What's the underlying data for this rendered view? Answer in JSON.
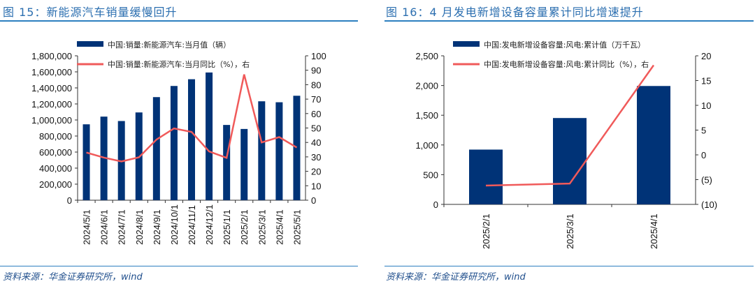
{
  "left": {
    "title": "图 15：新能源汽车销量缓慢回升",
    "source": "资料来源：华金证券研究所，wind"
  },
  "right": {
    "title": "图 16：4 月发电新增设备容量累计同比增速提升",
    "source": "资料来源：华金证券研究所，wind"
  },
  "colors": {
    "bar": "#003377",
    "line": "#f05a5a",
    "accent": "#2c7fc0"
  },
  "chart_data": [
    {
      "type": "bar+line",
      "title": "图 15：新能源汽车销量缓慢回升",
      "categories": [
        "2024/5/1",
        "2024/6/1",
        "2024/7/1",
        "2024/8/1",
        "2024/9/1",
        "2024/10/1",
        "2024/11/1",
        "2024/12/1",
        "2025/1/1",
        "2025/2/1",
        "2025/3/1",
        "2025/4/1",
        "2025/5/1"
      ],
      "series": [
        {
          "name": "中国:销量:新能源汽车:当月值（辆）",
          "axis": "left",
          "type": "bar",
          "values": [
            946000,
            1042000,
            987000,
            1094000,
            1285000,
            1424000,
            1508000,
            1592000,
            938000,
            888000,
            1233000,
            1221000,
            1302000
          ]
        },
        {
          "name": "中国:销量:新能源汽车:当月同比（%），右",
          "axis": "right",
          "type": "line",
          "values": [
            33.0,
            29.5,
            26.8,
            29.7,
            42.0,
            49.7,
            47.3,
            33.8,
            29.3,
            87.1,
            40.0,
            43.7,
            36.5
          ]
        }
      ],
      "ylim": [
        0,
        1800000
      ],
      "yticks": [
        "0",
        "200,000",
        "400,000",
        "600,000",
        "800,000",
        "1,000,000",
        "1,200,000",
        "1,400,000",
        "1,600,000",
        "1,800,000"
      ],
      "y2lim": [
        0,
        100
      ],
      "y2ticks": [
        "0",
        "10",
        "20",
        "30",
        "40",
        "50",
        "60",
        "70",
        "80",
        "90",
        "100"
      ],
      "legend": "top"
    },
    {
      "type": "bar+line",
      "title": "图 16：4 月发电新增设备容量累计同比增速提升",
      "categories": [
        "2025/2/1",
        "2025/3/1",
        "2025/4/1"
      ],
      "series": [
        {
          "name": "中国:发电新增设备容量:风电:累计值（万千瓦）",
          "axis": "left",
          "type": "bar",
          "values": [
            922,
            1453,
            1992
          ]
        },
        {
          "name": "中国:发电新增设备容量:风电:累计同比（%），右",
          "axis": "right",
          "type": "line",
          "values": [
            -6.2,
            -5.8,
            18.1
          ]
        }
      ],
      "ylim": [
        0,
        2500
      ],
      "yticks": [
        "0",
        "500",
        "1,000",
        "1,500",
        "2,000",
        "2,500"
      ],
      "y2lim": [
        -10,
        20
      ],
      "y2ticks": [
        "(10)",
        "(5)",
        "0",
        "5",
        "10",
        "15",
        "20"
      ],
      "legend": "top"
    }
  ]
}
